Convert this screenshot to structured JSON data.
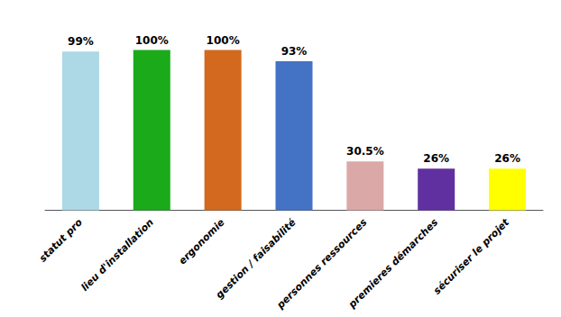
{
  "chart_data": {
    "type": "bar",
    "categories": [
      "statut pro",
      "lieu d'installation",
      "ergonomie",
      "gestion / faisabilité",
      "personnes ressources",
      "premieres démarches",
      "sécuriser le projet"
    ],
    "values": [
      99,
      100,
      100,
      93,
      30.5,
      26,
      26
    ],
    "value_labels": [
      "99%",
      "100%",
      "100%",
      "93%",
      "30.5%",
      "26%",
      "26%"
    ],
    "colors": [
      "#ADD8E6",
      "#1aaa1a",
      "#D2691E",
      "#4472C4",
      "#DBA8A8",
      "#6030A0",
      "#FFFF00"
    ],
    "ylim": [
      -2,
      120
    ],
    "data_labels": true,
    "tick_labels": "x",
    "grid": false
  }
}
